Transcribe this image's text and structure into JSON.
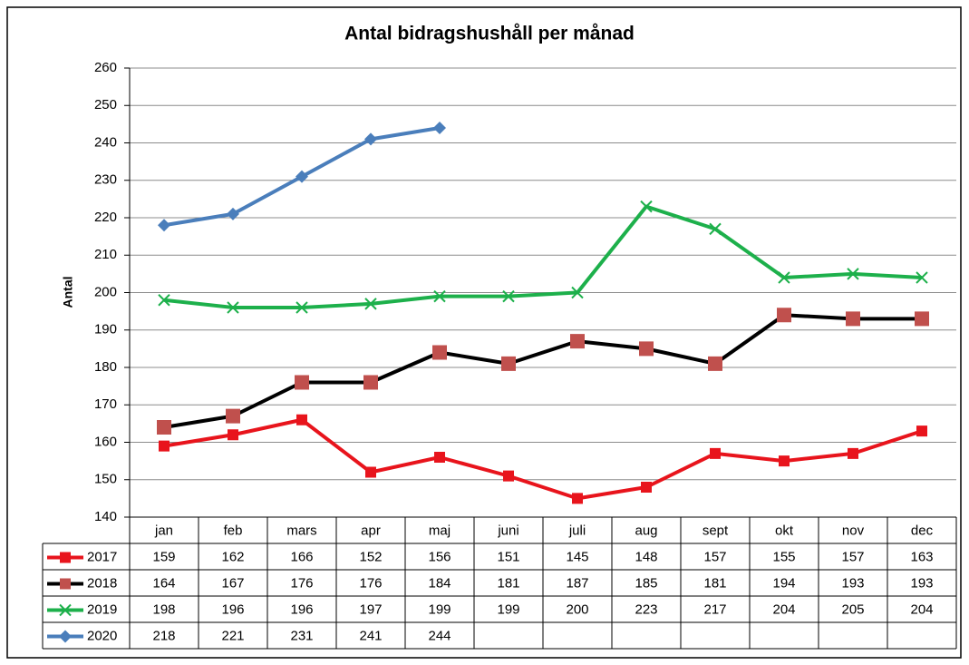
{
  "chart_data": {
    "type": "line",
    "title": "Antal bidragshushåll per månad",
    "y_label": "Antal",
    "categories": [
      "jan",
      "feb",
      "mars",
      "apr",
      "maj",
      "juni",
      "juli",
      "aug",
      "sept",
      "okt",
      "nov",
      "dec"
    ],
    "series": [
      {
        "name": "2017",
        "color": "#e8141c",
        "marker": "square",
        "marker_color": "#e8141c",
        "values": [
          159,
          162,
          166,
          152,
          156,
          151,
          145,
          148,
          157,
          155,
          157,
          163
        ]
      },
      {
        "name": "2018",
        "color": "#000000",
        "marker": "square",
        "marker_color": "#c0504d",
        "values": [
          164,
          167,
          176,
          176,
          184,
          181,
          187,
          185,
          181,
          194,
          193,
          193
        ]
      },
      {
        "name": "2019",
        "color": "#1db04b",
        "marker": "x",
        "marker_color": "#1db04b",
        "values": [
          198,
          196,
          196,
          197,
          199,
          199,
          200,
          223,
          217,
          204,
          205,
          204
        ]
      },
      {
        "name": "2020",
        "color": "#4a7ebb",
        "marker": "diamond",
        "marker_color": "#4a7ebb",
        "values": [
          218,
          221,
          231,
          241,
          244,
          null,
          null,
          null,
          null,
          null,
          null,
          null
        ]
      }
    ],
    "ylim": [
      140,
      260
    ],
    "yticks": [
      140,
      150,
      160,
      170,
      180,
      190,
      200,
      210,
      220,
      230,
      240,
      250,
      260
    ],
    "grid": true,
    "data_table": true
  }
}
